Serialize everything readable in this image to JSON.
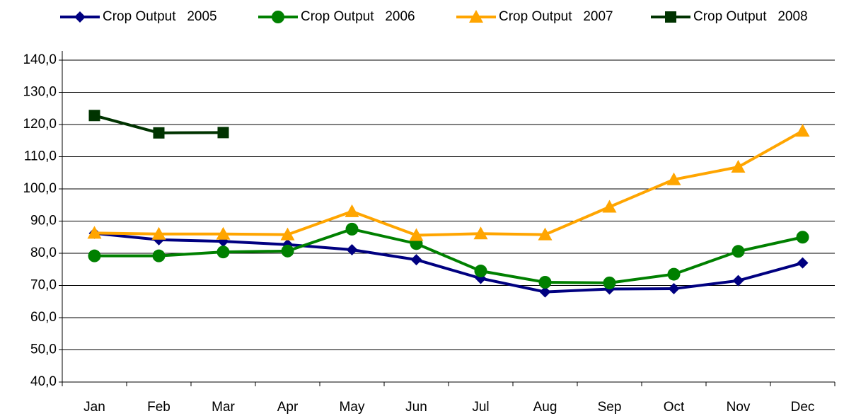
{
  "chart_data": {
    "type": "line",
    "categories": [
      "Jan",
      "Feb",
      "Mar",
      "Apr",
      "May",
      "Jun",
      "Jul",
      "Aug",
      "Sep",
      "Oct",
      "Nov",
      "Dec"
    ],
    "series": [
      {
        "name": "Crop Output   2005",
        "color": "#000080",
        "marker": "diamond",
        "values": [
          86.2,
          84.2,
          83.7,
          82.7,
          81.1,
          78.0,
          72.2,
          68.0,
          68.9,
          69.0,
          71.5,
          77.0
        ]
      },
      {
        "name": "Crop Output   2006",
        "color": "#008000",
        "marker": "circle",
        "values": [
          79.2,
          79.2,
          80.4,
          80.7,
          87.5,
          83.0,
          74.5,
          71.0,
          70.8,
          73.5,
          80.6,
          85.0
        ]
      },
      {
        "name": "Crop Output   2007",
        "color": "#FFA500",
        "marker": "triangle",
        "values": [
          86.3,
          86.0,
          86.0,
          85.8,
          93.0,
          85.6,
          86.1,
          85.8,
          94.4,
          102.9,
          106.8,
          118.0
        ]
      },
      {
        "name": "Crop Output   2008",
        "color": "#003300",
        "marker": "square",
        "values": [
          122.8,
          117.4,
          117.5,
          null,
          null,
          null,
          null,
          null,
          null,
          null,
          null,
          null
        ]
      }
    ],
    "ylim": [
      40,
      140
    ],
    "yticks": [
      {
        "value": 40,
        "label": "40,0"
      },
      {
        "value": 50,
        "label": "50,0"
      },
      {
        "value": 60,
        "label": "60,0"
      },
      {
        "value": 70,
        "label": "70,0"
      },
      {
        "value": 80,
        "label": "80,0"
      },
      {
        "value": 90,
        "label": "90,0"
      },
      {
        "value": 100,
        "label": "100,0"
      },
      {
        "value": 110,
        "label": "110,0"
      },
      {
        "value": 120,
        "label": "120,0"
      },
      {
        "value": 130,
        "label": "130,0"
      },
      {
        "value": 140,
        "label": "140,0"
      }
    ],
    "grid": true,
    "legend": "top"
  }
}
